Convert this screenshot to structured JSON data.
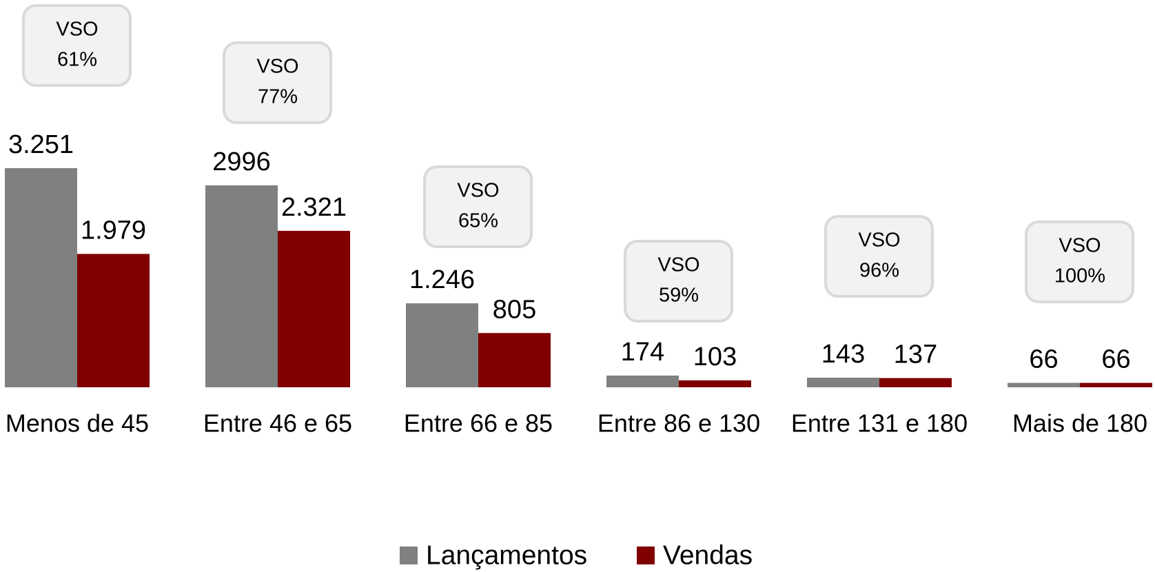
{
  "chart_data": {
    "type": "bar",
    "categories": [
      "Menos de 45",
      "Entre 46 e 65",
      "Entre 66 e 85",
      "Entre 86 e 130",
      "Entre 131 e 180",
      "Mais de 180"
    ],
    "series": [
      {
        "name": "Lançamentos",
        "color": "#808080",
        "values": [
          3251,
          2996,
          1246,
          174,
          143,
          66
        ],
        "value_labels": [
          "3.251",
          "2996",
          "1.246",
          "174",
          "143",
          "66"
        ]
      },
      {
        "name": "Vendas",
        "color": "#800000",
        "values": [
          1979,
          2321,
          805,
          103,
          137,
          66
        ],
        "value_labels": [
          "1.979",
          "2.321",
          "805",
          "103",
          "137",
          "66"
        ]
      }
    ],
    "annotations": {
      "label": "VSO",
      "values": [
        61,
        77,
        65,
        59,
        96,
        100
      ],
      "value_labels": [
        "61%",
        "77%",
        "65%",
        "59%",
        "96%",
        "100%"
      ]
    },
    "legend": "bottom"
  }
}
